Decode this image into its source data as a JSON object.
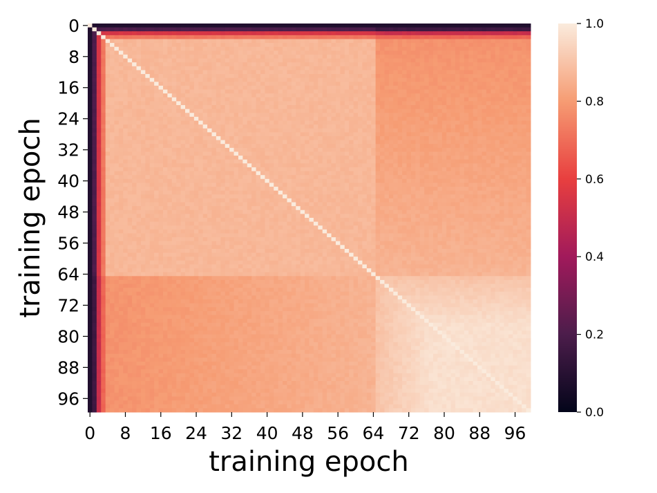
{
  "chart_data": {
    "type": "heatmap",
    "title": "",
    "xlabel": "training epoch",
    "ylabel": "training epoch",
    "x_tick_labels": [
      "0",
      "8",
      "16",
      "24",
      "32",
      "40",
      "48",
      "56",
      "64",
      "72",
      "80",
      "88",
      "96"
    ],
    "y_tick_labels": [
      "0",
      "8",
      "16",
      "24",
      "32",
      "40",
      "48",
      "56",
      "64",
      "72",
      "80",
      "88",
      "96"
    ],
    "n_epochs": 100,
    "colorbar": {
      "range": [
        0.0,
        1.0
      ],
      "tick_labels": [
        "0.0",
        "0.2",
        "0.4",
        "0.6",
        "0.8",
        "1.0"
      ],
      "colormap": "rocket",
      "colors": [
        "#03051a",
        "#4c1d4b",
        "#a11a5b",
        "#e83f3f",
        "#f69c73",
        "#faebdd"
      ]
    },
    "structure": {
      "diagonal_value": 1.0,
      "epoch_0_similarity": 0.08,
      "early_epochs_1_3_similarity": [
        0.2,
        0.55,
        0.72
      ],
      "block_1_epochs": [
        4,
        64
      ],
      "block_1_within_similarity": 0.87,
      "block_2_epochs": [
        65,
        99
      ],
      "block_2_within_similarity": 0.97,
      "cross_block_similarity": 0.78
    }
  }
}
